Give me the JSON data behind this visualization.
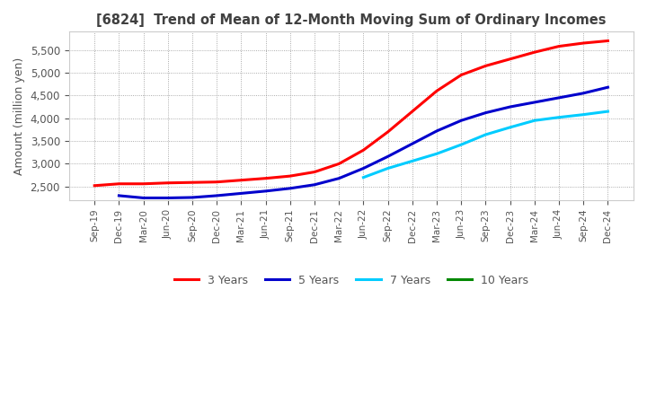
{
  "title": "[6824]  Trend of Mean of 12-Month Moving Sum of Ordinary Incomes",
  "ylabel": "Amount (million yen)",
  "ylim": [
    2200,
    5900
  ],
  "yticks": [
    2500,
    3000,
    3500,
    4000,
    4500,
    5000,
    5500
  ],
  "legend_labels": [
    "3 Years",
    "5 Years",
    "7 Years",
    "10 Years"
  ],
  "legend_colors": [
    "#ff0000",
    "#0000cc",
    "#00ccff",
    "#008800"
  ],
  "x_labels": [
    "Sep-19",
    "Dec-19",
    "Mar-20",
    "Jun-20",
    "Sep-20",
    "Dec-20",
    "Mar-21",
    "Jun-21",
    "Sep-21",
    "Dec-21",
    "Mar-22",
    "Jun-22",
    "Sep-22",
    "Dec-22",
    "Mar-23",
    "Jun-23",
    "Sep-23",
    "Dec-23",
    "Mar-24",
    "Jun-24",
    "Sep-24",
    "Dec-24"
  ],
  "series": {
    "3yr": [
      2520,
      2560,
      2560,
      2580,
      2590,
      2600,
      2640,
      2680,
      2730,
      2820,
      3000,
      3300,
      3700,
      4150,
      4600,
      4950,
      5150,
      5300,
      5450,
      5580,
      5650,
      5700
    ],
    "5yr": [
      null,
      2300,
      2250,
      2250,
      2260,
      2300,
      2350,
      2400,
      2460,
      2540,
      2680,
      2900,
      3160,
      3440,
      3720,
      3950,
      4120,
      4250,
      4350,
      4450,
      4550,
      4680
    ],
    "7yr": [
      null,
      null,
      null,
      null,
      null,
      null,
      null,
      null,
      null,
      null,
      null,
      2700,
      2900,
      3060,
      3220,
      3420,
      3640,
      3800,
      3950,
      4020,
      4080,
      4150
    ],
    "10yr": [
      null,
      null,
      null,
      null,
      null,
      null,
      null,
      null,
      null,
      null,
      null,
      null,
      null,
      null,
      null,
      null,
      null,
      null,
      null,
      null,
      null,
      null
    ]
  },
  "background_color": "#ffffff",
  "plot_bg_color": "#ffffff",
  "grid_color": "#888888",
  "title_color": "#404040",
  "tick_color": "#555555"
}
